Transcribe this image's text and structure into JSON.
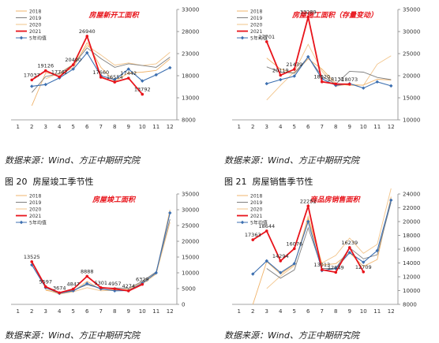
{
  "source_text": "数据来源：Wind、方正中期研究院",
  "captions": [
    {
      "label": "图 20",
      "title": "房屋竣工季节性"
    },
    {
      "label": "图 21",
      "title": "房屋销售季节性"
    }
  ],
  "colors": {
    "s2018": "#f0b46c",
    "s2019": "#7f7f7f",
    "s2020": "#f2c48a",
    "s2021": "#e8141b",
    "avg": "#3c6fb0",
    "title": "#e8141b"
  },
  "chart_data": [
    {
      "type": "line",
      "title": "房屋新开工面积",
      "x": [
        1,
        2,
        3,
        4,
        5,
        6,
        7,
        8,
        9,
        10,
        11,
        12
      ],
      "ylim": [
        8000,
        33000
      ],
      "y_ticks": [
        "8000",
        "13000",
        "18000",
        "23000",
        "28000",
        "33000"
      ],
      "legend_position": "top-left",
      "series": [
        {
          "name": "2018",
          "key": "s2018",
          "values": [
            null,
            11200,
            18600,
            18300,
            19800,
            25500,
            19900,
            16700,
            18600,
            18800,
            19200,
            21800
          ]
        },
        {
          "name": "2019",
          "key": "s2019",
          "values": [
            null,
            14200,
            17800,
            18500,
            20500,
            24300,
            21900,
            19900,
            20700,
            20300,
            19900,
            22200
          ]
        },
        {
          "name": "2020",
          "key": "s2020",
          "values": [
            null,
            null,
            17300,
            18600,
            20600,
            24800,
            22700,
            20400,
            20900,
            20300,
            20700,
            23300
          ]
        },
        {
          "name": "2021",
          "key": "s2021",
          "values": [
            null,
            17037,
            19126,
            17742,
            20490,
            26940,
            17660,
            16554,
            17442,
            13792,
            null,
            null
          ]
        },
        {
          "name": "5年均值",
          "key": "avg",
          "values": [
            null,
            15600,
            16000,
            17500,
            19500,
            23200,
            18000,
            17100,
            19500,
            16800,
            18200,
            19800
          ]
        }
      ],
      "data_labels": [
        {
          "x": 2,
          "text": "17037"
        },
        {
          "x": 3,
          "text": "19126"
        },
        {
          "x": 4,
          "text": "17742"
        },
        {
          "x": 5,
          "text": "20490"
        },
        {
          "x": 6,
          "text": "26940"
        },
        {
          "x": 7,
          "text": "17660"
        },
        {
          "x": 8,
          "text": "16554"
        },
        {
          "x": 9,
          "text": "17442"
        },
        {
          "x": 10,
          "text": "13792"
        }
      ]
    },
    {
      "type": "line",
      "title": "房屋施工面积（存量变动）",
      "x": [
        1,
        2,
        3,
        4,
        5,
        6,
        7,
        8,
        9,
        10,
        11,
        12
      ],
      "ylim": [
        10000,
        35000
      ],
      "y_ticks": [
        "10000",
        "15000",
        "20000",
        "25000",
        "30000",
        "35000"
      ],
      "legend_position": "top-left",
      "series": [
        {
          "name": "2018",
          "key": "s2018",
          "values": [
            null,
            null,
            24000,
            21500,
            20500,
            23800,
            21500,
            18200,
            17800,
            17900,
            19200,
            19000
          ]
        },
        {
          "name": "2019",
          "key": "s2019",
          "values": [
            null,
            null,
            22000,
            20800,
            20600,
            24200,
            19900,
            18100,
            21000,
            20800,
            19600,
            19100
          ]
        },
        {
          "name": "2020",
          "key": "s2020",
          "values": [
            null,
            null,
            14500,
            17800,
            20900,
            27100,
            21000,
            17600,
            18100,
            17800,
            22600,
            24500
          ]
        },
        {
          "name": "2021",
          "key": "s2021",
          "values": [
            null,
            null,
            27701,
            20119,
            21439,
            33289,
            18620,
            18132,
            18073,
            null,
            null,
            null
          ]
        },
        {
          "name": "5年均值",
          "key": "avg",
          "values": [
            null,
            null,
            18200,
            19100,
            19900,
            24300,
            19300,
            17800,
            18200,
            17200,
            18600,
            17700
          ]
        }
      ],
      "data_labels": [
        {
          "x": 3,
          "text": "27701"
        },
        {
          "x": 4,
          "text": "20119"
        },
        {
          "x": 5,
          "text": "21439"
        },
        {
          "x": 6,
          "text": "33289"
        },
        {
          "x": 7,
          "text": "18620"
        },
        {
          "x": 8,
          "text": "18132"
        },
        {
          "x": 9,
          "text": "18073"
        }
      ]
    },
    {
      "type": "line",
      "title": "房屋竣工面积",
      "x": [
        1,
        2,
        3,
        4,
        5,
        6,
        7,
        8,
        9,
        10,
        11,
        12
      ],
      "ylim": [
        0,
        35000
      ],
      "y_ticks": [
        "0",
        "5000",
        "10000",
        "15000",
        "20000",
        "25000",
        "30000",
        "35000"
      ],
      "legend_position": "top-left",
      "series": [
        {
          "name": "2018",
          "key": "s2018",
          "values": [
            null,
            null,
            4500,
            3600,
            4200,
            7300,
            4700,
            4600,
            4800,
            7000,
            9800,
            30000
          ]
        },
        {
          "name": "2019",
          "key": "s2019",
          "values": [
            null,
            null,
            5300,
            3700,
            4500,
            6200,
            5100,
            5200,
            5100,
            7300,
            10300,
            27000
          ]
        },
        {
          "name": "2020",
          "key": "s2020",
          "values": [
            null,
            null,
            4800,
            3200,
            4000,
            5300,
            4300,
            4500,
            4600,
            6400,
            9600,
            26000
          ]
        },
        {
          "name": "2021",
          "key": "s2021",
          "values": [
            null,
            13525,
            5597,
            3674,
            4847,
            8888,
            5301,
            4957,
            4274,
            6329,
            null,
            null
          ]
        },
        {
          "name": "5年均值",
          "key": "avg",
          "values": [
            null,
            12500,
            5300,
            3500,
            4300,
            6600,
            4900,
            4300,
            4400,
            6700,
            10000,
            29000
          ]
        }
      ],
      "data_labels": [
        {
          "x": 2,
          "text": "13525"
        },
        {
          "x": 3,
          "text": "5597"
        },
        {
          "x": 4,
          "text": "3674"
        },
        {
          "x": 5,
          "text": "4847"
        },
        {
          "x": 6,
          "text": "8888"
        },
        {
          "x": 7,
          "text": "5301"
        },
        {
          "x": 8,
          "text": "4957"
        },
        {
          "x": 9,
          "text": "4274"
        },
        {
          "x": 10,
          "text": "6329"
        }
      ]
    },
    {
      "type": "line",
      "title": "商品房销售面积",
      "x": [
        1,
        2,
        3,
        4,
        5,
        6,
        7,
        8,
        9,
        10,
        11,
        12
      ],
      "ylim": [
        8000,
        24000
      ],
      "y_ticks": [
        "8000",
        "10000",
        "12000",
        "14000",
        "16000",
        "18000",
        "20000",
        "22000",
        "24000"
      ],
      "legend_position": "top-left",
      "series": [
        {
          "name": "2018",
          "key": "s2018",
          "values": [
            null,
            8000,
            14200,
            12400,
            13800,
            20400,
            13700,
            13900,
            15500,
            13500,
            14500,
            23600
          ]
        },
        {
          "name": "2019",
          "key": "s2019",
          "values": [
            null,
            null,
            13200,
            11800,
            13000,
            19100,
            13200,
            13200,
            16200,
            14600,
            15200,
            22800
          ]
        },
        {
          "name": "2020",
          "key": "s2020",
          "values": [
            null,
            null,
            10300,
            12100,
            13600,
            20800,
            14000,
            15100,
            17600,
            15400,
            16700,
            24800
          ]
        },
        {
          "name": "2021",
          "key": "s2021",
          "values": [
            null,
            17363,
            18644,
            14294,
            16076,
            22252,
            13013,
            12649,
            16239,
            12709,
            null,
            null
          ]
        },
        {
          "name": "5年均值",
          "key": "avg",
          "values": [
            null,
            12400,
            14300,
            12600,
            13900,
            20000,
            12900,
            13200,
            15500,
            14100,
            15800,
            23100
          ]
        }
      ],
      "data_labels": [
        {
          "x": 2,
          "text": "17363"
        },
        {
          "x": 3,
          "text": "18644"
        },
        {
          "x": 4,
          "text": "14294"
        },
        {
          "x": 5,
          "text": "16076"
        },
        {
          "x": 6,
          "text": "22252"
        },
        {
          "x": 7,
          "text": "13013"
        },
        {
          "x": 8,
          "text": "12649"
        },
        {
          "x": 9,
          "text": "16239"
        },
        {
          "x": 10,
          "text": "12709"
        }
      ]
    }
  ]
}
